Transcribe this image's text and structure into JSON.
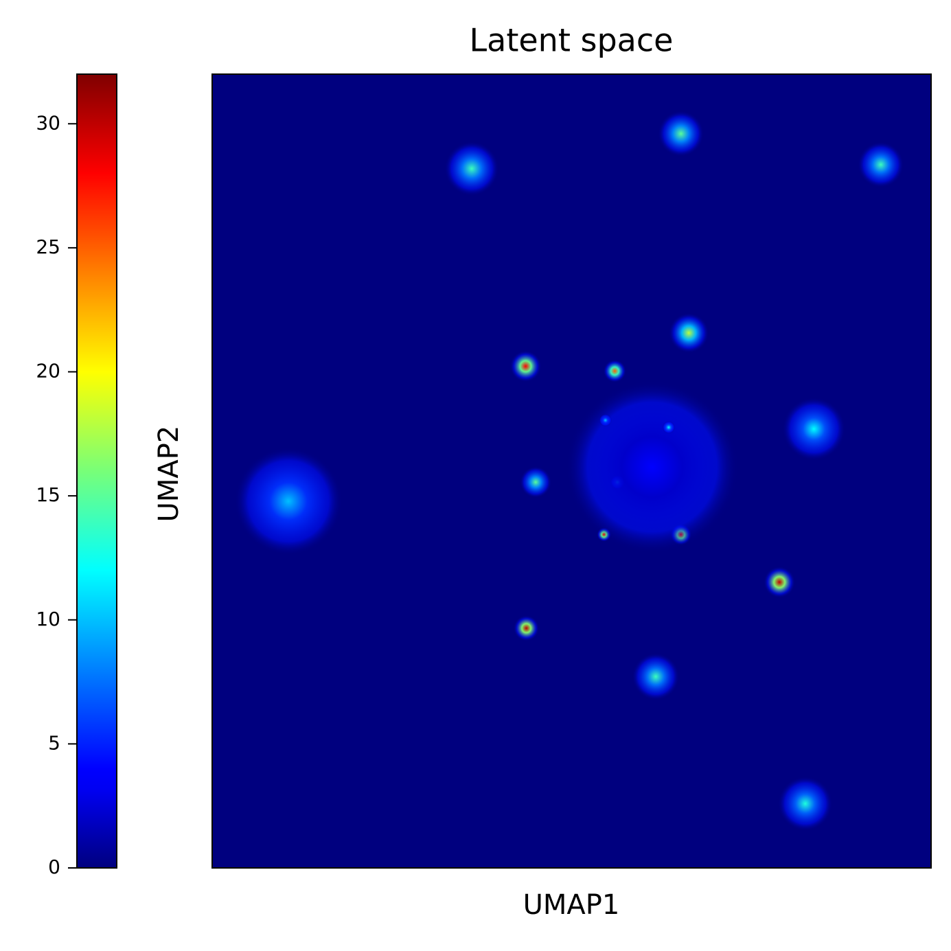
{
  "chart_data": {
    "type": "hist2d",
    "title": "Latent space",
    "xlabel": "UMAP1",
    "ylabel": "UMAP2",
    "colormap": "jet",
    "xlim": [
      0,
      100
    ],
    "ylim": [
      0,
      100
    ],
    "x": [
      10.6,
      65.2,
      36.1,
      93.0,
      66.3,
      43.6,
      56.0,
      83.7,
      45.0,
      56.4,
      54.5,
      65.2,
      78.9,
      43.7,
      61.7,
      82.5,
      61.2,
      63.5,
      54.7
    ],
    "y": [
      46.2,
      92.5,
      88.1,
      88.6,
      67.4,
      63.2,
      62.6,
      55.3,
      48.6,
      48.6,
      42.0,
      42.0,
      36.0,
      30.2,
      24.1,
      8.1,
      50.5,
      55.5,
      56.4
    ],
    "values": [
      10,
      15,
      14,
      14,
      18,
      28,
      25,
      12,
      15,
      12,
      28,
      28,
      30,
      30,
      14,
      13,
      4,
      12,
      10
    ],
    "sizes": [
      7.5,
      3.2,
      3.8,
      3.2,
      2.8,
      2.2,
      1.6,
      4.4,
      2.2,
      1.0,
      1.0,
      1.5,
      2.2,
      1.8,
      3.3,
      3.8,
      12,
      0.9,
      0.9
    ],
    "clim": [
      0,
      32
    ],
    "cticks": [
      0,
      5,
      10,
      15,
      20,
      25,
      30
    ]
  }
}
